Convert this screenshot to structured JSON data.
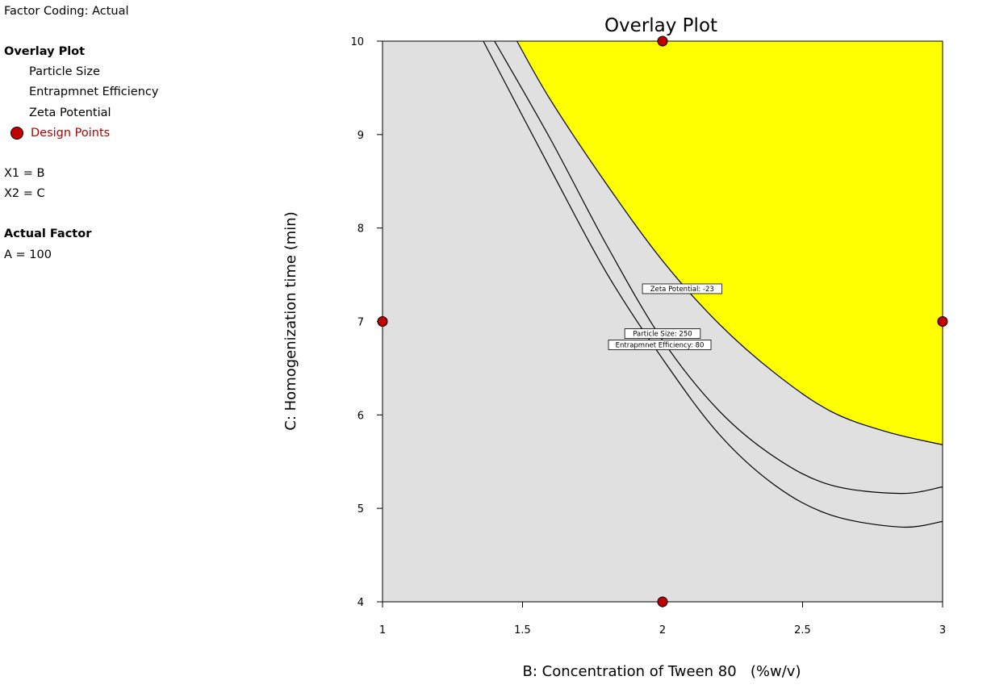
{
  "side_panel": {
    "factor_coding": "Factor Coding: Actual",
    "plot_heading": "Overlay Plot",
    "responses": [
      "Particle Size",
      "Entrapmnet Efficiency",
      "Zeta Potential"
    ],
    "design_points_label": "Design Points",
    "x1": "X1 = B",
    "x2": "X2 = C",
    "actual_factor_heading": "Actual Factor",
    "actual_factor_value": "A = 100"
  },
  "colors": {
    "feasible_region": "#ffff00",
    "infeasible_region": "#e0e0e0",
    "design_point": "#c00000",
    "design_point_label": "#b00000",
    "contour": "#000000"
  },
  "chart_data": {
    "type": "contour",
    "title": "Overlay Plot",
    "xlabel": "B: Concentration of Tween 80   (%w/v)",
    "ylabel": "C: Homogenization time (min)",
    "xlim": [
      1,
      3
    ],
    "ylim": [
      4,
      10
    ],
    "x_ticks": [
      "1",
      "1.5",
      "2",
      "2.5",
      "3"
    ],
    "y_ticks": [
      "4",
      "5",
      "6",
      "7",
      "8",
      "9",
      "10"
    ],
    "grid": false,
    "contours": [
      {
        "name": "Zeta Potential",
        "label": "Zeta Potential: -23",
        "points": [
          [
            1.48,
            10
          ],
          [
            1.6,
            9.37
          ],
          [
            1.8,
            8.47
          ],
          [
            2.0,
            7.65
          ],
          [
            2.2,
            6.98
          ],
          [
            2.4,
            6.45
          ],
          [
            2.6,
            6.04
          ],
          [
            2.8,
            5.82
          ],
          [
            3.0,
            5.68
          ]
        ],
        "bounds_feasible_region": true
      },
      {
        "name": "Particle Size",
        "label": "Particle Size: 250",
        "points": [
          [
            1.4,
            10
          ],
          [
            1.6,
            8.95
          ],
          [
            1.8,
            7.82
          ],
          [
            2.0,
            6.8
          ],
          [
            2.2,
            6.05
          ],
          [
            2.4,
            5.55
          ],
          [
            2.6,
            5.25
          ],
          [
            2.85,
            5.16
          ],
          [
            3.0,
            5.23
          ]
        ]
      },
      {
        "name": "Entrapmnet Efficiency",
        "label": "Entrapmnet Efficiency: 80",
        "points": [
          [
            1.36,
            10
          ],
          [
            1.6,
            8.63
          ],
          [
            1.8,
            7.52
          ],
          [
            2.0,
            6.6
          ],
          [
            2.2,
            5.8
          ],
          [
            2.4,
            5.25
          ],
          [
            2.6,
            4.93
          ],
          [
            2.85,
            4.8
          ],
          [
            3.0,
            4.86
          ]
        ]
      }
    ],
    "label_anchors": [
      {
        "label": "Zeta Potential: -23",
        "x": 2.07,
        "y": 7.35
      },
      {
        "label": "Particle Size: 250",
        "x": 2.0,
        "y": 6.87
      },
      {
        "label": "Entrapmnet Efficiency: 80",
        "x": 1.99,
        "y": 6.75
      }
    ],
    "design_points": [
      {
        "x": 2,
        "y": 10
      },
      {
        "x": 1,
        "y": 7
      },
      {
        "x": 3,
        "y": 7
      },
      {
        "x": 2,
        "y": 4
      }
    ]
  }
}
